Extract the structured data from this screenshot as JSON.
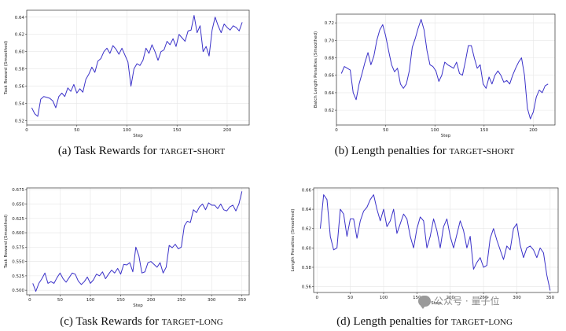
{
  "captions": [
    {
      "prefix": "(a) Task Rewards for ",
      "sc": "target-short"
    },
    {
      "prefix": "(b) Length penalties for ",
      "sc": "target-short"
    },
    {
      "prefix": "(c) Task Rewards for ",
      "sc": "target-long"
    },
    {
      "prefix": "(d) Length penalties for ",
      "sc": "target-long"
    }
  ],
  "watermark": {
    "text": "公众号 · 量子位"
  },
  "colors": {
    "line": "#3b32c9",
    "grid": "#e6e6e6",
    "axis": "#333333"
  },
  "chart_data": [
    {
      "type": "line",
      "xlabel": "Step",
      "ylabel": "Task Reward (Smoothed)",
      "xlim": [
        0,
        222
      ],
      "ylim": [
        0.515,
        0.648
      ],
      "xticks": [
        0,
        50,
        100,
        150,
        200
      ],
      "yticks": [
        0.52,
        0.54,
        0.56,
        0.58,
        0.6,
        0.62,
        0.64
      ],
      "ytick_labels": [
        "0.52",
        "0.54",
        "0.56",
        "0.58",
        "0.60",
        "0.62",
        "0.64"
      ],
      "grid": true,
      "x": [
        5,
        8,
        11,
        14,
        17,
        20,
        23,
        26,
        29,
        32,
        35,
        38,
        41,
        44,
        47,
        50,
        53,
        56,
        59,
        62,
        65,
        68,
        71,
        74,
        77,
        80,
        83,
        86,
        89,
        92,
        95,
        98,
        101,
        104,
        107,
        110,
        113,
        116,
        119,
        122,
        125,
        128,
        131,
        134,
        137,
        140,
        143,
        146,
        149,
        152,
        155,
        158,
        161,
        164,
        167,
        170,
        173,
        176,
        179,
        182,
        185,
        188,
        191,
        194,
        197,
        200,
        203,
        206,
        209,
        212,
        215
      ],
      "y": [
        0.535,
        0.528,
        0.525,
        0.545,
        0.548,
        0.547,
        0.546,
        0.543,
        0.535,
        0.548,
        0.552,
        0.548,
        0.558,
        0.554,
        0.562,
        0.552,
        0.557,
        0.553,
        0.568,
        0.574,
        0.582,
        0.576,
        0.589,
        0.592,
        0.6,
        0.604,
        0.598,
        0.607,
        0.603,
        0.597,
        0.604,
        0.596,
        0.588,
        0.56,
        0.58,
        0.586,
        0.584,
        0.59,
        0.604,
        0.598,
        0.608,
        0.6,
        0.59,
        0.6,
        0.602,
        0.612,
        0.608,
        0.615,
        0.606,
        0.62,
        0.616,
        0.612,
        0.624,
        0.625,
        0.642,
        0.622,
        0.63,
        0.6,
        0.606,
        0.595,
        0.625,
        0.64,
        0.63,
        0.622,
        0.632,
        0.628,
        0.625,
        0.63,
        0.628,
        0.624,
        0.634
      ]
    },
    {
      "type": "line",
      "xlabel": "Step",
      "ylabel": "Batch Length Penalties (Smoothed)",
      "xlim": [
        0,
        222
      ],
      "ylim": [
        0.603,
        0.73
      ],
      "xticks": [
        0,
        50,
        100,
        150,
        200
      ],
      "yticks": [
        0.62,
        0.64,
        0.66,
        0.68,
        0.7,
        0.72
      ],
      "ytick_labels": [
        "0.62",
        "0.64",
        "0.66",
        "0.68",
        "0.70",
        "0.72"
      ],
      "grid": true,
      "x": [
        5,
        8,
        11,
        14,
        17,
        20,
        23,
        26,
        29,
        32,
        35,
        38,
        41,
        44,
        47,
        50,
        53,
        56,
        59,
        62,
        65,
        68,
        71,
        74,
        77,
        80,
        83,
        86,
        89,
        92,
        95,
        98,
        101,
        104,
        107,
        110,
        113,
        116,
        119,
        122,
        125,
        128,
        131,
        134,
        137,
        140,
        143,
        146,
        149,
        152,
        155,
        158,
        161,
        164,
        167,
        170,
        173,
        176,
        179,
        182,
        185,
        188,
        191,
        194,
        197,
        200,
        203,
        206,
        209,
        212,
        215
      ],
      "y": [
        0.662,
        0.67,
        0.668,
        0.666,
        0.64,
        0.632,
        0.65,
        0.662,
        0.675,
        0.686,
        0.672,
        0.682,
        0.7,
        0.712,
        0.718,
        0.705,
        0.688,
        0.672,
        0.664,
        0.668,
        0.65,
        0.645,
        0.65,
        0.665,
        0.692,
        0.702,
        0.714,
        0.724,
        0.712,
        0.688,
        0.672,
        0.67,
        0.665,
        0.653,
        0.66,
        0.675,
        0.672,
        0.67,
        0.668,
        0.675,
        0.662,
        0.66,
        0.676,
        0.694,
        0.694,
        0.68,
        0.668,
        0.672,
        0.65,
        0.645,
        0.658,
        0.65,
        0.66,
        0.665,
        0.66,
        0.652,
        0.654,
        0.65,
        0.66,
        0.668,
        0.675,
        0.68,
        0.66,
        0.622,
        0.61,
        0.618,
        0.635,
        0.643,
        0.64,
        0.648,
        0.65
      ]
    },
    {
      "type": "line",
      "xlabel": "Step",
      "ylabel": "Task Reward (Smoothed)",
      "xlim": [
        -5,
        362
      ],
      "ylim": [
        0.492,
        0.678
      ],
      "xticks": [
        0,
        50,
        100,
        150,
        200,
        250,
        300,
        350
      ],
      "yticks": [
        0.5,
        0.525,
        0.55,
        0.575,
        0.6,
        0.625,
        0.65,
        0.675
      ],
      "ytick_labels": [
        "0.500",
        "0.525",
        "0.550",
        "0.575",
        "0.600",
        "0.625",
        "0.650",
        "0.675"
      ],
      "grid": true,
      "x": [
        5,
        10,
        15,
        20,
        25,
        30,
        35,
        40,
        45,
        50,
        55,
        60,
        65,
        70,
        75,
        80,
        85,
        90,
        95,
        100,
        105,
        110,
        115,
        120,
        125,
        130,
        135,
        140,
        145,
        150,
        155,
        160,
        165,
        170,
        175,
        180,
        185,
        190,
        195,
        200,
        205,
        210,
        215,
        220,
        225,
        230,
        235,
        240,
        245,
        250,
        255,
        260,
        265,
        270,
        275,
        280,
        285,
        290,
        295,
        300,
        305,
        310,
        315,
        320,
        325,
        330,
        335,
        340,
        345,
        350
      ],
      "y": [
        0.512,
        0.498,
        0.512,
        0.52,
        0.53,
        0.512,
        0.515,
        0.512,
        0.522,
        0.53,
        0.52,
        0.514,
        0.522,
        0.53,
        0.528,
        0.516,
        0.51,
        0.515,
        0.523,
        0.512,
        0.518,
        0.528,
        0.525,
        0.532,
        0.52,
        0.528,
        0.535,
        0.53,
        0.538,
        0.528,
        0.545,
        0.544,
        0.548,
        0.532,
        0.575,
        0.56,
        0.53,
        0.532,
        0.548,
        0.55,
        0.545,
        0.54,
        0.548,
        0.53,
        0.54,
        0.578,
        0.574,
        0.58,
        0.572,
        0.575,
        0.612,
        0.62,
        0.618,
        0.64,
        0.635,
        0.645,
        0.65,
        0.64,
        0.652,
        0.648,
        0.648,
        0.642,
        0.65,
        0.64,
        0.638,
        0.645,
        0.648,
        0.638,
        0.65,
        0.672
      ]
    },
    {
      "type": "line",
      "xlabel": "Step",
      "ylabel": "Length Penalties (Smoothed)",
      "xlim": [
        -5,
        362
      ],
      "ylim": [
        0.554,
        0.662
      ],
      "xticks": [
        0,
        50,
        100,
        150,
        200,
        250,
        300,
        350
      ],
      "yticks": [
        0.56,
        0.58,
        0.6,
        0.62,
        0.64,
        0.66
      ],
      "ytick_labels": [
        "0.56",
        "0.58",
        "0.60",
        "0.62",
        "0.64",
        "0.66"
      ],
      "grid": true,
      "x": [
        5,
        10,
        15,
        20,
        25,
        30,
        35,
        40,
        45,
        50,
        55,
        60,
        65,
        70,
        75,
        80,
        85,
        90,
        95,
        100,
        105,
        110,
        115,
        120,
        125,
        130,
        135,
        140,
        145,
        150,
        155,
        160,
        165,
        170,
        175,
        180,
        185,
        190,
        195,
        200,
        205,
        210,
        215,
        220,
        225,
        230,
        235,
        240,
        245,
        250,
        255,
        260,
        265,
        270,
        275,
        280,
        285,
        290,
        295,
        300,
        305,
        310,
        315,
        320,
        325,
        330,
        335,
        340,
        345,
        350
      ],
      "y": [
        0.62,
        0.655,
        0.65,
        0.612,
        0.598,
        0.6,
        0.64,
        0.635,
        0.612,
        0.63,
        0.63,
        0.61,
        0.628,
        0.638,
        0.642,
        0.65,
        0.655,
        0.64,
        0.628,
        0.64,
        0.622,
        0.628,
        0.64,
        0.615,
        0.625,
        0.635,
        0.63,
        0.612,
        0.6,
        0.62,
        0.632,
        0.628,
        0.6,
        0.612,
        0.63,
        0.618,
        0.6,
        0.622,
        0.63,
        0.612,
        0.6,
        0.614,
        0.628,
        0.618,
        0.6,
        0.612,
        0.578,
        0.585,
        0.59,
        0.58,
        0.582,
        0.61,
        0.62,
        0.608,
        0.598,
        0.588,
        0.602,
        0.598,
        0.62,
        0.625,
        0.603,
        0.59,
        0.6,
        0.602,
        0.598,
        0.59,
        0.6,
        0.595,
        0.572,
        0.556
      ]
    }
  ]
}
